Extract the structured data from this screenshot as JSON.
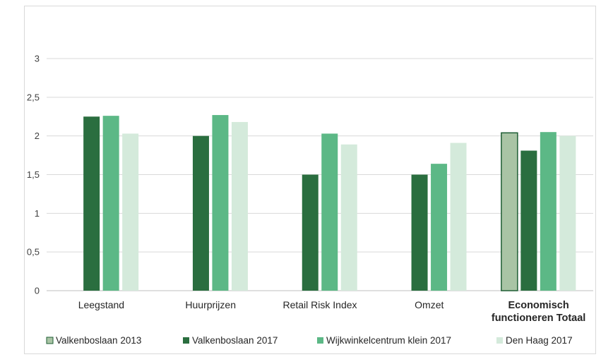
{
  "chart_data": {
    "type": "bar",
    "title": "",
    "xlabel": "",
    "ylabel": "",
    "ylim": [
      0,
      3
    ],
    "yticks": [
      "0",
      "0,5",
      "1",
      "1,5",
      "2",
      "2,5",
      "3"
    ],
    "grid": true,
    "legend_position": "bottom",
    "categories": [
      "Leegstand",
      "Huurprijzen",
      "Retail Risk Index",
      "Omzet",
      "Economisch functioneren Totaal"
    ],
    "category_lines": [
      [
        "Leegstand"
      ],
      [
        "Huurprijzen"
      ],
      [
        "Retail Risk Index"
      ],
      [
        "Omzet"
      ],
      [
        "Economisch",
        "functioneren Totaal"
      ]
    ],
    "bold_category": "Economisch functioneren Totaal",
    "series": [
      {
        "name": "Valkenboslaan 2013",
        "color": "#a9c4a5",
        "stroke": "#1e5e34",
        "values": [
          null,
          null,
          null,
          null,
          2.04
        ]
      },
      {
        "name": "Valkenboslaan 2017",
        "color": "#2a6e3f",
        "values": [
          2.25,
          2.0,
          1.5,
          1.5,
          1.81
        ]
      },
      {
        "name": "Wijkwinkelcentrum klein 2017",
        "color": "#5cb886",
        "values": [
          2.26,
          2.27,
          2.03,
          1.64,
          2.05
        ]
      },
      {
        "name": "Den Haag 2017",
        "color": "#d4eadb",
        "values": [
          2.03,
          2.18,
          1.89,
          1.91,
          2.0
        ]
      }
    ]
  }
}
